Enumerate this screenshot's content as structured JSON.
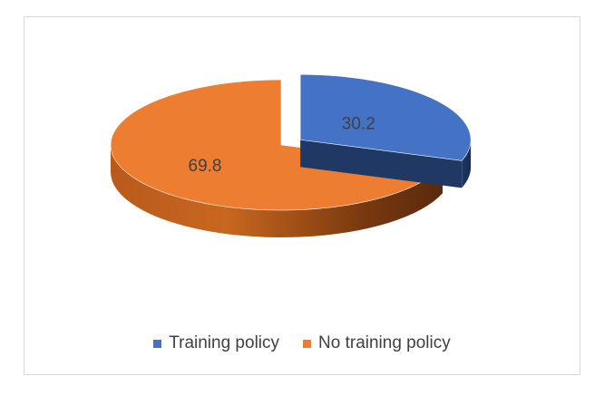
{
  "chart_data": {
    "type": "pie",
    "style": "3d-exploded",
    "categories": [
      "Training policy",
      "No training policy"
    ],
    "values": [
      30.2,
      69.8
    ],
    "data_labels": [
      "30.2",
      "69.8"
    ],
    "colors": {
      "training_policy": "#4472c4",
      "training_policy_side": "#203864",
      "no_training_policy": "#ed7d31",
      "no_training_policy_side": "#8c3f0c"
    },
    "legend_position": "bottom",
    "title": ""
  },
  "legend": {
    "items": [
      {
        "label": "Training policy",
        "color": "#4472c4"
      },
      {
        "label": "No training policy",
        "color": "#ed7d31"
      }
    ]
  }
}
